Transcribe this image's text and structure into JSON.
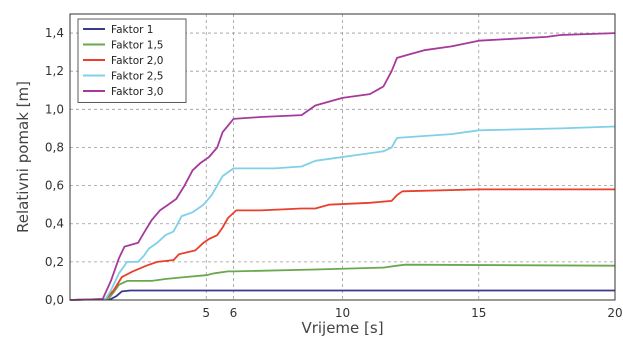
{
  "chart_data": {
    "type": "line",
    "title": "",
    "xlabel": "Vrijeme [s]",
    "ylabel": "Relativni pomak [m]",
    "xlim": [
      0,
      20
    ],
    "ylim": [
      0,
      1.5
    ],
    "x_ticks": [
      5,
      6,
      10,
      15,
      20
    ],
    "x_tick_labels": [
      "5",
      "6",
      "10",
      "15",
      "20"
    ],
    "y_ticks": [
      0,
      0.2,
      0.4,
      0.6,
      0.8,
      1.0,
      1.2,
      1.4
    ],
    "y_tick_labels": [
      "0,0",
      "0,2",
      "0,4",
      "0,6",
      "0,8",
      "1,0",
      "1,2",
      "1,4"
    ],
    "grid": "dashed",
    "legend_position": "top-left",
    "series": [
      {
        "name": "Faktor 1",
        "color": "#3a3a8c",
        "points": [
          [
            0,
            0
          ],
          [
            1.5,
            0.005
          ],
          [
            1.7,
            0.02
          ],
          [
            1.9,
            0.045
          ],
          [
            2.2,
            0.05
          ],
          [
            20,
            0.05
          ]
        ]
      },
      {
        "name": "Faktor 1,5",
        "color": "#6aa84f",
        "points": [
          [
            0,
            0
          ],
          [
            1.4,
            0.005
          ],
          [
            1.6,
            0.04
          ],
          [
            1.8,
            0.08
          ],
          [
            2.1,
            0.1
          ],
          [
            3.0,
            0.1
          ],
          [
            3.5,
            0.11
          ],
          [
            4.2,
            0.12
          ],
          [
            5.0,
            0.13
          ],
          [
            5.3,
            0.14
          ],
          [
            5.8,
            0.15
          ],
          [
            6.0,
            0.15
          ],
          [
            9.0,
            0.16
          ],
          [
            11.5,
            0.17
          ],
          [
            12.0,
            0.18
          ],
          [
            12.3,
            0.185
          ],
          [
            20,
            0.18
          ]
        ]
      },
      {
        "name": "Faktor 2,0",
        "color": "#e8402c",
        "points": [
          [
            0,
            0
          ],
          [
            1.3,
            0.005
          ],
          [
            1.6,
            0.05
          ],
          [
            1.9,
            0.12
          ],
          [
            2.3,
            0.15
          ],
          [
            2.8,
            0.18
          ],
          [
            3.2,
            0.2
          ],
          [
            3.8,
            0.21
          ],
          [
            4.0,
            0.24
          ],
          [
            4.6,
            0.26
          ],
          [
            4.9,
            0.3
          ],
          [
            5.1,
            0.32
          ],
          [
            5.4,
            0.34
          ],
          [
            5.6,
            0.38
          ],
          [
            5.8,
            0.43
          ],
          [
            6.1,
            0.47
          ],
          [
            7.0,
            0.47
          ],
          [
            8.5,
            0.48
          ],
          [
            9.0,
            0.48
          ],
          [
            9.5,
            0.5
          ],
          [
            11.0,
            0.51
          ],
          [
            11.8,
            0.52
          ],
          [
            12.0,
            0.55
          ],
          [
            12.2,
            0.57
          ],
          [
            15.0,
            0.58
          ],
          [
            20,
            0.58
          ]
        ]
      },
      {
        "name": "Faktor 2,5",
        "color": "#7fd0e8",
        "points": [
          [
            0,
            0
          ],
          [
            1.3,
            0.005
          ],
          [
            1.5,
            0.05
          ],
          [
            1.8,
            0.14
          ],
          [
            2.1,
            0.2
          ],
          [
            2.5,
            0.2
          ],
          [
            2.7,
            0.23
          ],
          [
            2.9,
            0.27
          ],
          [
            3.2,
            0.3
          ],
          [
            3.5,
            0.34
          ],
          [
            3.8,
            0.36
          ],
          [
            4.1,
            0.44
          ],
          [
            4.5,
            0.46
          ],
          [
            4.9,
            0.5
          ],
          [
            5.2,
            0.55
          ],
          [
            5.4,
            0.6
          ],
          [
            5.6,
            0.65
          ],
          [
            6.0,
            0.69
          ],
          [
            7.5,
            0.69
          ],
          [
            8.5,
            0.7
          ],
          [
            9.0,
            0.73
          ],
          [
            10.5,
            0.76
          ],
          [
            11.5,
            0.78
          ],
          [
            11.8,
            0.8
          ],
          [
            12.0,
            0.85
          ],
          [
            13.0,
            0.86
          ],
          [
            14.0,
            0.87
          ],
          [
            15.0,
            0.89
          ],
          [
            18.0,
            0.9
          ],
          [
            20,
            0.91
          ]
        ]
      },
      {
        "name": "Faktor 3,0",
        "color": "#a63a9b",
        "points": [
          [
            0,
            0
          ],
          [
            1.2,
            0.005
          ],
          [
            1.5,
            0.1
          ],
          [
            1.8,
            0.22
          ],
          [
            2.0,
            0.28
          ],
          [
            2.5,
            0.3
          ],
          [
            2.7,
            0.35
          ],
          [
            3.0,
            0.42
          ],
          [
            3.3,
            0.47
          ],
          [
            3.6,
            0.5
          ],
          [
            3.9,
            0.53
          ],
          [
            4.2,
            0.6
          ],
          [
            4.5,
            0.68
          ],
          [
            4.8,
            0.72
          ],
          [
            5.1,
            0.75
          ],
          [
            5.4,
            0.8
          ],
          [
            5.6,
            0.88
          ],
          [
            6.0,
            0.95
          ],
          [
            7.0,
            0.96
          ],
          [
            8.5,
            0.97
          ],
          [
            9.0,
            1.02
          ],
          [
            10.0,
            1.06
          ],
          [
            11.0,
            1.08
          ],
          [
            11.5,
            1.12
          ],
          [
            11.8,
            1.2
          ],
          [
            12.0,
            1.27
          ],
          [
            12.5,
            1.29
          ],
          [
            13.0,
            1.31
          ],
          [
            14.0,
            1.33
          ],
          [
            15.0,
            1.36
          ],
          [
            17.5,
            1.38
          ],
          [
            18.0,
            1.39
          ],
          [
            20,
            1.4
          ]
        ]
      }
    ]
  }
}
